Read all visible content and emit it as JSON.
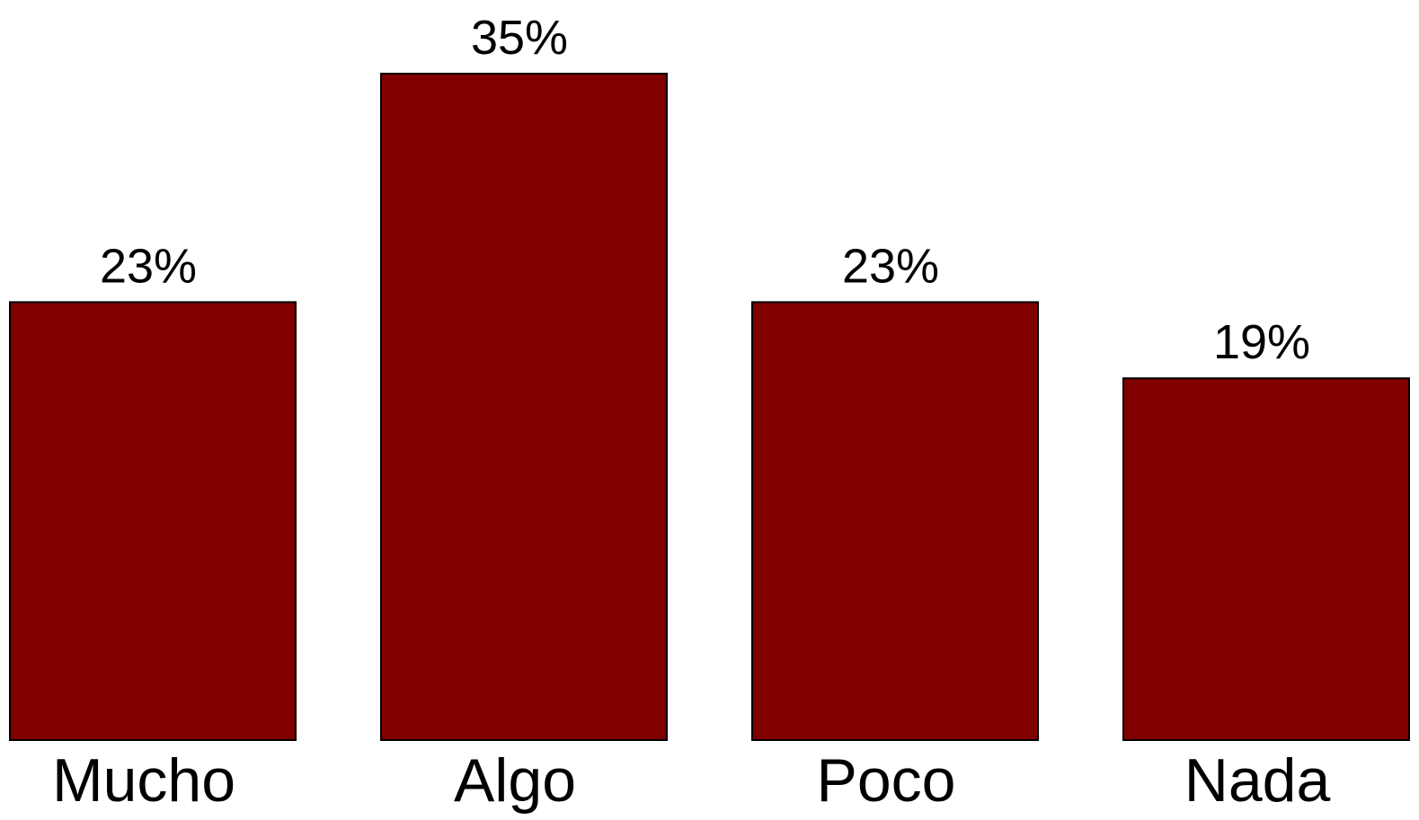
{
  "chart_data": {
    "type": "bar",
    "categories": [
      "Mucho",
      "Algo",
      "Poco",
      "Nada"
    ],
    "values": [
      23,
      35,
      23,
      19
    ],
    "value_labels": [
      "23%",
      "35%",
      "23%",
      "19%"
    ],
    "title": "",
    "xlabel": "",
    "ylabel": "",
    "ylim": [
      0,
      35
    ],
    "grid": false,
    "legend": "none",
    "bar_color": "#800000"
  }
}
